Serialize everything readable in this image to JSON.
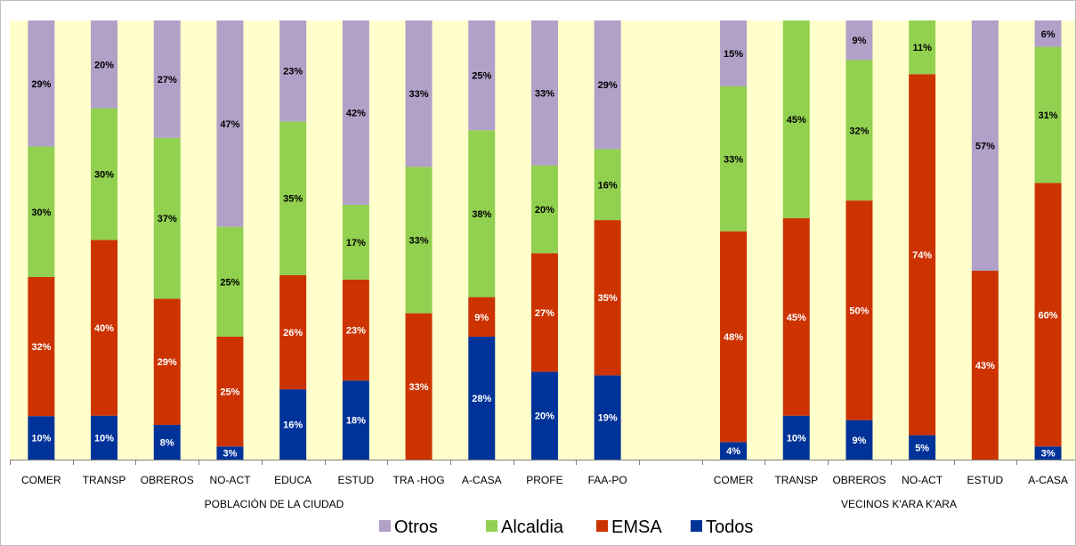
{
  "chart_data": {
    "type": "bar",
    "stacked": true,
    "percent_stacked": true,
    "groups": [
      {
        "label": "POBLACIÓN DE LA CIUDAD",
        "categories": [
          "COMER",
          "TRANSP",
          "OBREROS",
          "NO-ACT",
          "EDUCA",
          "ESTUD",
          "TRA -HOG",
          "A-CASA",
          "PROFE",
          "FAA-PO"
        ],
        "series": [
          {
            "name": "Todos",
            "values": [
              10,
              10,
              8,
              3,
              16,
              18,
              0,
              28,
              20,
              19
            ],
            "labels": [
              "10%",
              "10%",
              "8%",
              "3%",
              "16%",
              "18%",
              "",
              "28%",
              "20%",
              "19%"
            ]
          },
          {
            "name": "EMSA",
            "values": [
              32,
              40,
              29,
              25,
              26,
              23,
              33,
              9,
              27,
              35
            ],
            "labels": [
              "32%",
              "40%",
              "29%",
              "25%",
              "26%",
              "23%",
              "33%",
              "9%",
              "27%",
              "35%"
            ]
          },
          {
            "name": "Alcaldia",
            "values": [
              30,
              30,
              37,
              25,
              35,
              17,
              33,
              38,
              20,
              16
            ],
            "labels": [
              "30%",
              "30%",
              "37%",
              "25%",
              "35%",
              "17%",
              "33%",
              "38%",
              "20%",
              "16%"
            ]
          },
          {
            "name": "Otros",
            "values": [
              29,
              20,
              27,
              47,
              23,
              42,
              33,
              25,
              33,
              29
            ],
            "labels": [
              "29%",
              "20%",
              "27%",
              "47%",
              "23%",
              "42%",
              "33%",
              "25%",
              "33%",
              "29%"
            ]
          }
        ]
      },
      {
        "label": "VECINOS K'ARA K'ARA",
        "categories": [
          "COMER",
          "TRANSP",
          "OBREROS",
          "NO-ACT",
          "ESTUD",
          "A-CASA"
        ],
        "series": [
          {
            "name": "Todos",
            "values": [
              4,
              10,
              9,
              5,
              0,
              3
            ],
            "labels": [
              "4%",
              "10%",
              "9%",
              "5%",
              "",
              "3%"
            ]
          },
          {
            "name": "EMSA",
            "values": [
              48,
              45,
              50,
              74,
              43,
              60
            ],
            "labels": [
              "48%",
              "45%",
              "50%",
              "74%",
              "43%",
              "60%"
            ]
          },
          {
            "name": "Alcaldia",
            "values": [
              33,
              45,
              32,
              11,
              0,
              31
            ],
            "labels": [
              "33%",
              "45%",
              "32%",
              "11%",
              "",
              "31%"
            ]
          },
          {
            "name": "Otros",
            "values": [
              15,
              0,
              9,
              0,
              57,
              6
            ],
            "labels": [
              "15%",
              "",
              "9%",
              "",
              "57%",
              "6%"
            ]
          }
        ]
      }
    ],
    "legend": {
      "position": "bottom",
      "order": [
        "Otros",
        "Alcaldia",
        "EMSA",
        "Todos"
      ]
    },
    "colors": {
      "Todos": "#003399",
      "EMSA": "#cc3300",
      "Alcaldia": "#92d050",
      "Otros": "#b1a0c7",
      "plot_background": "#ffffcc"
    },
    "ylim": [
      0,
      100
    ],
    "grid": false
  }
}
